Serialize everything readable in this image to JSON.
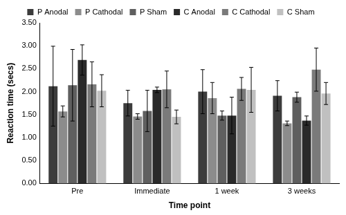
{
  "chart_data": {
    "type": "bar",
    "x_label": "Time point",
    "y_label": "Reaction time (secs)",
    "categories": [
      "Pre",
      "Immediate",
      "1 week",
      "3 weeks"
    ],
    "series": [
      {
        "name": "P Anodal",
        "color": "#3c3c3c",
        "values": [
          2.12,
          1.75,
          2.0,
          1.91
        ],
        "errors": [
          0.87,
          0.28,
          0.48,
          0.33
        ]
      },
      {
        "name": "P Cathodal",
        "color": "#8c8c8c",
        "values": [
          1.57,
          1.46,
          1.86,
          1.31
        ],
        "errors": [
          0.12,
          0.06,
          0.34,
          0.05
        ]
      },
      {
        "name": "P Sham",
        "color": "#5f5f5f",
        "values": [
          2.14,
          1.58,
          1.48,
          1.88
        ],
        "errors": [
          0.78,
          0.45,
          0.1,
          0.11
        ]
      },
      {
        "name": "C Anodal",
        "color": "#2a2a2a",
        "values": [
          2.69,
          2.04,
          1.48,
          1.37
        ],
        "errors": [
          0.33,
          0.06,
          0.4,
          0.1
        ]
      },
      {
        "name": "C Cathodal",
        "color": "#7a7a7a",
        "values": [
          2.16,
          2.05,
          2.06,
          2.48
        ],
        "errors": [
          0.49,
          0.4,
          0.25,
          0.47
        ]
      },
      {
        "name": "C Sham",
        "color": "#c0c0c0",
        "values": [
          2.02,
          1.45,
          2.04,
          1.96
        ],
        "errors": [
          0.35,
          0.15,
          0.49,
          0.24
        ]
      }
    ],
    "ylim": [
      0,
      3.5
    ],
    "yticks": [
      {
        "value": 0,
        "label": "0.00"
      },
      {
        "value": 0.5,
        "label": "0.50"
      },
      {
        "value": 1,
        "label": "1.00"
      },
      {
        "value": 1.5,
        "label": "1.50"
      },
      {
        "value": 2,
        "label": "2.00"
      },
      {
        "value": 2.5,
        "label": "2.50"
      },
      {
        "value": 3,
        "label": "3.00"
      },
      {
        "value": 3.5,
        "label": "3.50"
      }
    ],
    "grid": false,
    "legend": "top"
  }
}
